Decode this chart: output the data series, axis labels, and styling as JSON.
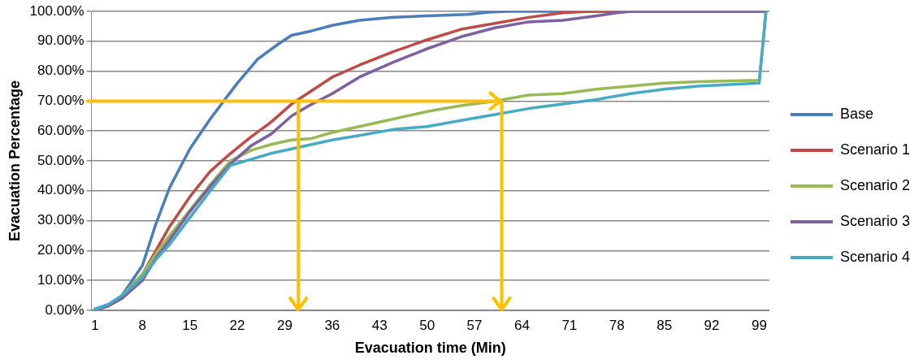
{
  "chart_data": {
    "type": "line",
    "xlabel": "Evacuation time (Min)",
    "ylabel": "Evacuation Percentage",
    "xlim": [
      0.5,
      100.5
    ],
    "xticks": [
      1,
      8,
      15,
      22,
      29,
      36,
      43,
      50,
      57,
      64,
      71,
      78,
      85,
      92,
      99
    ],
    "ylim": [
      0,
      100
    ],
    "yticks": [
      {
        "value": 0,
        "label": "0.00%"
      },
      {
        "value": 10,
        "label": "10.00%"
      },
      {
        "value": 20,
        "label": "20.00%"
      },
      {
        "value": 30,
        "label": "30.00%"
      },
      {
        "value": 40,
        "label": "40.00%"
      },
      {
        "value": 50,
        "label": "50.00%"
      },
      {
        "value": 60,
        "label": "60.00%"
      },
      {
        "value": 70,
        "label": "70.00%"
      },
      {
        "value": 80,
        "label": "80.00%"
      },
      {
        "value": 90,
        "label": "90.00%"
      },
      {
        "value": 100,
        "label": "100.00%"
      }
    ],
    "grid": "y",
    "legend": "right",
    "ref_lines": [
      {
        "axis": "y",
        "value": 70,
        "color": "#ffc000"
      },
      {
        "axis": "x",
        "value": 31,
        "color": "#ffc000"
      },
      {
        "axis": "x",
        "value": 61,
        "color": "#ffc000"
      }
    ],
    "marker": "none",
    "line_style": "solid",
    "series": [
      {
        "name": "Base",
        "color": "#4a7ebb",
        "x": [
          1,
          3,
          5,
          8,
          10,
          12,
          15,
          18,
          20,
          22,
          25,
          28,
          30,
          33,
          36,
          40,
          45,
          50,
          56,
          59,
          62,
          70,
          80,
          90,
          100
        ],
        "values": [
          0.5,
          2,
          5,
          15,
          29,
          41,
          54,
          64,
          70,
          76,
          84,
          89,
          92,
          93.5,
          95.3,
          97,
          98,
          98.5,
          99,
          99.7,
          100,
          100,
          100,
          100,
          100
        ]
      },
      {
        "name": "Scenario 1",
        "color": "#be4b48",
        "x": [
          5,
          8,
          10,
          12,
          15,
          18,
          21,
          24,
          27,
          30,
          33,
          36,
          40,
          45,
          50,
          55,
          60,
          65,
          70,
          74,
          80
        ],
        "values": [
          5,
          12,
          20,
          28,
          38,
          46.5,
          52.5,
          58,
          63,
          69,
          73.5,
          78,
          82,
          86.5,
          90.5,
          94,
          96,
          98,
          99.5,
          100,
          100
        ]
      },
      {
        "name": "Scenario 2",
        "color": "#98b954",
        "x": [
          5,
          8,
          10,
          12,
          15,
          18,
          21,
          24,
          27,
          30,
          33,
          36,
          40,
          45,
          50,
          55,
          60,
          65,
          70,
          75,
          80,
          85,
          90,
          99,
          100
        ],
        "values": [
          5,
          12,
          19,
          25,
          33.5,
          42,
          50,
          53.5,
          55.5,
          57,
          57.5,
          59.5,
          61.5,
          64,
          66.5,
          68.5,
          70,
          72,
          72.5,
          74,
          75,
          76,
          76.5,
          77,
          100
        ]
      },
      {
        "name": "Scenario 3",
        "color": "#7d60a0",
        "x": [
          1,
          3,
          5,
          8,
          10,
          12,
          15,
          18,
          21,
          24,
          27,
          30,
          33,
          36,
          40,
          45,
          50,
          55,
          60,
          65,
          70,
          75,
          78,
          80,
          90,
          100
        ],
        "values": [
          0,
          1.5,
          4,
          10,
          17.5,
          23.5,
          33,
          41.5,
          49,
          55,
          59,
          65,
          69,
          72.5,
          78,
          83,
          87.5,
          91.5,
          94.5,
          96.5,
          97,
          98.5,
          99.5,
          100,
          100,
          100
        ]
      },
      {
        "name": "Scenario 4",
        "color": "#46aac5",
        "x": [
          1,
          3,
          5,
          8,
          10,
          12,
          15,
          18,
          21,
          24,
          27,
          30,
          33,
          36,
          40,
          45,
          50,
          55,
          60,
          65,
          70,
          75,
          80,
          85,
          90,
          99,
          100
        ],
        "values": [
          0.3,
          2,
          5,
          11,
          17,
          22,
          31,
          40,
          48.5,
          50.5,
          52.5,
          54,
          55.5,
          57,
          58.5,
          60.5,
          61.5,
          63.5,
          65.5,
          67.5,
          69,
          70.5,
          72.5,
          74,
          75,
          76,
          100
        ]
      }
    ]
  }
}
